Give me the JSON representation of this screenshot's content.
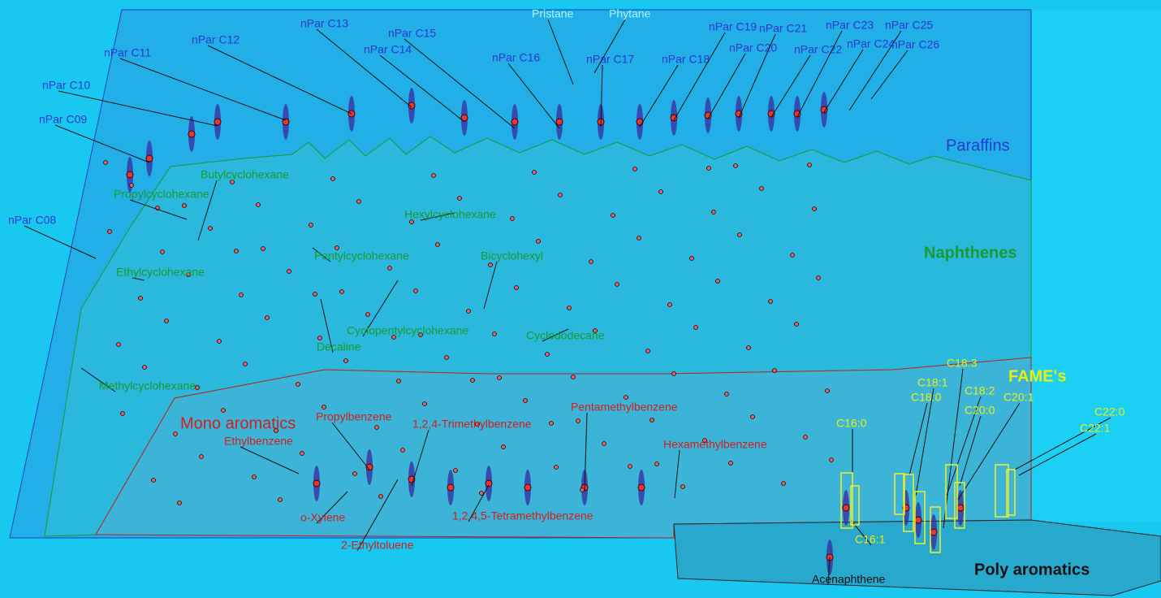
{
  "groups": [
    {
      "name": "Paraffins",
      "compounds": [
        "nPar C08",
        "nPar C09",
        "nPar C10",
        "nPar C11",
        "nPar C12",
        "nPar C13",
        "nPar C14",
        "nPar C15",
        "nPar C16",
        "nPar C17",
        "nPar C18",
        "nPar C19",
        "nPar C20",
        "nPar C21",
        "nPar C22",
        "nPar C23",
        "nPar C24",
        "nPar C25",
        "nPar C26",
        "Pristane",
        "Phytane"
      ]
    },
    {
      "name": "Naphthenes",
      "compounds": [
        "Butylcyclohexane",
        "Propylcyclohexane",
        "Ethylcyclohexane",
        "Methylcyclohexane",
        "Hexylcyclohexane",
        "Pentylcyclohexane",
        "Bicyclohexyl",
        "Cyclopentylcyclohexane",
        "Cyclododecane",
        "Decaline"
      ]
    },
    {
      "name": "Mono aromatics",
      "compounds": [
        "Ethylbenzene",
        "Propylbenzene",
        "1,2,4-Trimethylbenzene",
        "Pentamethylbenzene",
        "Hexamethylbenzene",
        "o-Xylene",
        "2-Ethyltoluene",
        "1,2,4,5-Tetramethylbenzene"
      ]
    },
    {
      "name": "FAME's",
      "compounds": [
        "C16:0",
        "C18:0",
        "C18:1",
        "C18:3",
        "C18:2",
        "C20:1",
        "C20:0",
        "C22:0",
        "C22:1",
        "C16:1"
      ]
    },
    {
      "name": "Poly aromatics",
      "compounds": [
        "Acenaphthene"
      ]
    }
  ]
}
